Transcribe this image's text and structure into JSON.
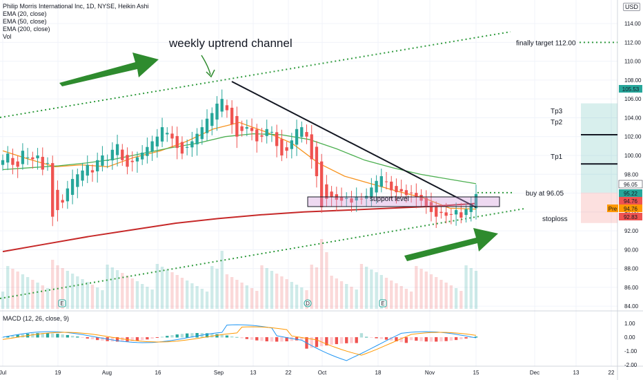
{
  "header": {
    "title": "Philip Morris International Inc, 1D, NYSE, Heikin Ashi",
    "indicators": [
      "EMA (20, close)",
      "EMA (50, close)",
      "EMA (200, close)",
      "Vol"
    ],
    "currency": "USD"
  },
  "macd_label": "MACD (12, 26, close, 9)",
  "chart_data": {
    "type": "line",
    "title": "Philip Morris International Inc, 1D, NYSE, Heikin Ashi",
    "xlabel": "",
    "ylabel": "",
    "ylim": [
      83.5,
      116.5
    ],
    "x_ticks": [
      "Jul",
      "19",
      "Aug",
      "16",
      "Sep",
      "13",
      "22",
      "Oct",
      "18",
      "Nov",
      "15",
      "Dec",
      "13",
      "22"
    ],
    "y_ticks": [
      84.0,
      86.0,
      88.0,
      90.0,
      92.0,
      94.0,
      96.0,
      98.0,
      100.0,
      102.0,
      104.0,
      106.0,
      108.0,
      110.0,
      112.0,
      114.0
    ],
    "macd_ticks": [
      1.0,
      0.0,
      -1.0,
      -2.0
    ],
    "price_labels": [
      {
        "value": 105.53,
        "text": "105.53",
        "color": "#26a69a"
      },
      {
        "value": 96.05,
        "text": "96.05",
        "color": "#ffffff"
      },
      {
        "value": 95.22,
        "text": "95.22",
        "color": "#26a69a"
      },
      {
        "value": 94.76,
        "text": "94.76",
        "color": "#ef5350"
      },
      {
        "value": 94.76,
        "text": "94.76",
        "color": "#ff9800",
        "prefix": "Pre"
      },
      {
        "value": 92.83,
        "text": "92.83",
        "color": "#ef5350"
      }
    ],
    "series": [
      {
        "name": "EMA (20, close)",
        "color": "#f7931e",
        "values": [
          100.5,
          99.6,
          98.8,
          99.0,
          98.8,
          99.8,
          100.5,
          101.5,
          102.8,
          103.5,
          102.5,
          101.3,
          99.2,
          97.8,
          97.0,
          96.2,
          95.5,
          94.4,
          94.3
        ]
      },
      {
        "name": "EMA (50, close)",
        "color": "#4caf50",
        "values": [
          98.5,
          98.7,
          98.9,
          99.2,
          99.6,
          100.2,
          100.8,
          101.3,
          102.0,
          102.3,
          102.2,
          101.7,
          100.7,
          99.5,
          98.7,
          98.0,
          97.5,
          97.0
        ]
      },
      {
        "name": "EMA (200, close)",
        "color": "#c62828",
        "values": [
          89.8,
          90.6,
          91.4,
          92.1,
          92.8,
          93.3,
          93.7,
          94.0,
          94.2,
          94.4,
          94.6,
          94.9
        ]
      }
    ],
    "annotations": {
      "channel_label": "weekly uptrend channel",
      "finally_target": "finally target 112.00",
      "tp3": "Tp3",
      "tp2": "Tp2",
      "tp1": "Tp1",
      "buy": "buy at 96.05",
      "support": "support level",
      "stoploss": "stoploss",
      "levels": {
        "tp3": 105.53,
        "tp2": 102.2,
        "tp1": 99.1,
        "entry": 96.05,
        "stop": 92.83,
        "target": 112.0
      }
    },
    "event_markers": [
      "E",
      "D",
      "E"
    ],
    "grid": true,
    "legend": "top-left"
  }
}
